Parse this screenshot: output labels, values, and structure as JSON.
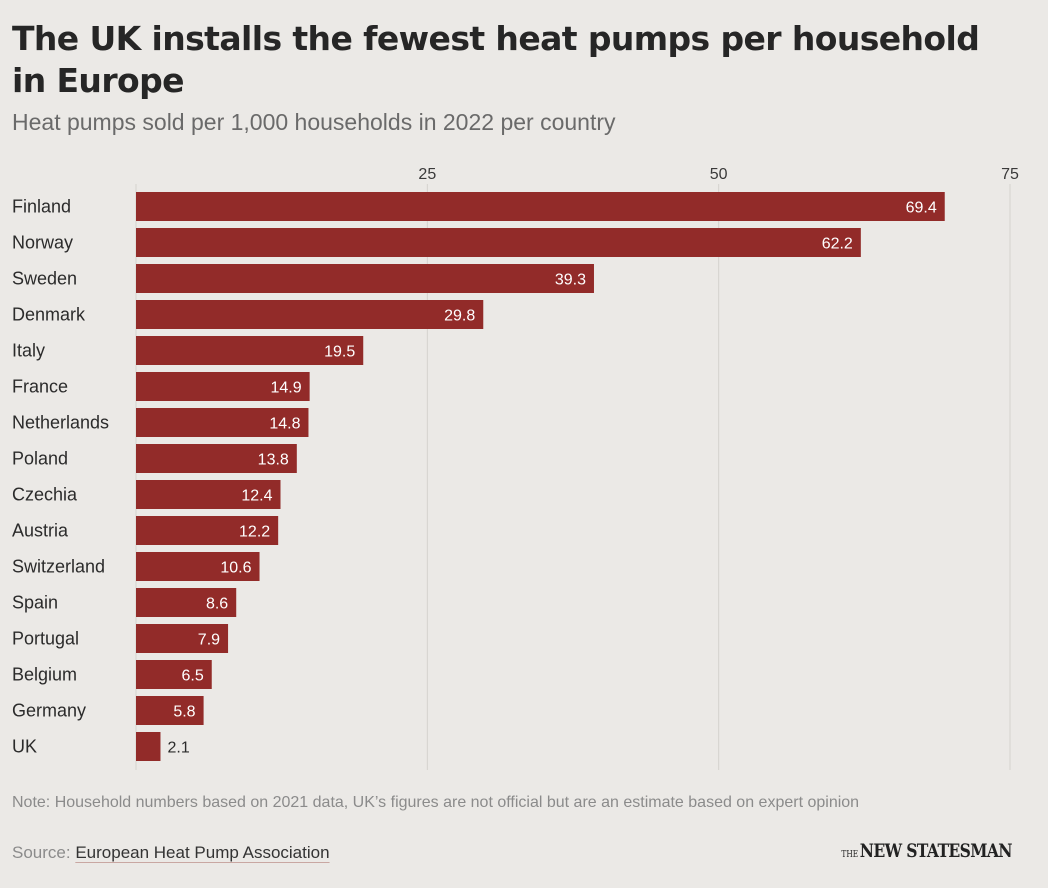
{
  "header": {
    "title": "The UK installs the fewest heat pumps per household in Europe",
    "subtitle": "Heat pumps sold per 1,000 households in 2022 per country"
  },
  "chart_data": {
    "type": "bar",
    "orientation": "horizontal",
    "title": "The UK installs the fewest heat pumps per household in Europe",
    "subtitle": "Heat pumps sold per 1,000 households in 2022 per country",
    "xlabel": "",
    "ylabel": "",
    "xlim": [
      0,
      75
    ],
    "xticks": [
      25,
      50,
      75
    ],
    "xtick_labels": [
      "25",
      "50",
      "75"
    ],
    "grid": true,
    "categories": [
      "Finland",
      "Norway",
      "Sweden",
      "Denmark",
      "Italy",
      "France",
      "Netherlands",
      "Poland",
      "Czechia",
      "Austria",
      "Switzerland",
      "Spain",
      "Portugal",
      "Belgium",
      "Germany",
      "UK"
    ],
    "values": [
      69.4,
      62.2,
      39.3,
      29.8,
      19.5,
      14.9,
      14.8,
      13.8,
      12.4,
      12.2,
      10.6,
      8.6,
      7.9,
      6.5,
      5.8,
      2.1
    ],
    "value_labels": [
      "69.4",
      "62.2",
      "39.3",
      "29.8",
      "19.5",
      "14.9",
      "14.8",
      "13.8",
      "12.4",
      "12.2",
      "10.6",
      "8.6",
      "7.9",
      "6.5",
      "5.8",
      "2.1"
    ],
    "bar_color": "#922b29"
  },
  "footer": {
    "note": "Note: Household numbers based on 2021 data, UK’s figures are not official but are an estimate based on expert opinion",
    "source_label": "Source:",
    "source_name": "European Heat Pump Association",
    "logo_prefix": "THE",
    "logo_text": "NEW STATESMAN"
  },
  "colors": {
    "background": "#ebe9e6",
    "bar": "#922b29",
    "grid": "#d5d2ce"
  }
}
